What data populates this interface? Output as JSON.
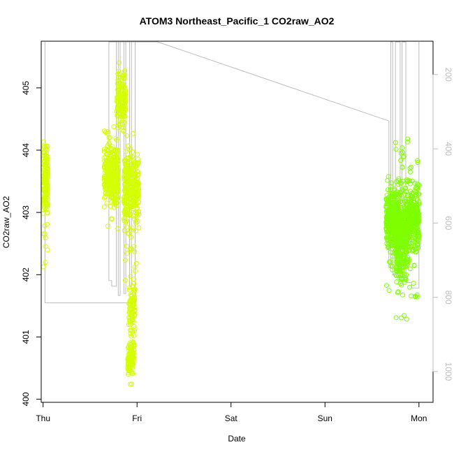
{
  "chart_data": {
    "type": "scatter",
    "title": "ATOM3 Northeast_Pacific_1 CO2raw_AO2",
    "xlabel": "Date",
    "ylabel": "CO2raw_AO2",
    "ylabel_right": "",
    "x_ticks": [
      "Thu",
      "Fri",
      "Sat",
      "Sun",
      "Mon"
    ],
    "y_ticks": [
      "400",
      "401",
      "402",
      "403",
      "404",
      "405"
    ],
    "y_right_ticks": [
      "200",
      "400",
      "600",
      "800",
      "1000"
    ],
    "xlim": [
      -0.02,
      4.15
    ],
    "ylim": [
      399.95,
      405.75
    ],
    "y_right_lim": [
      1083,
      110
    ],
    "grid": false,
    "legend": "none",
    "colors": {
      "series_a": "#d4ff00",
      "series_b": "#7fff00",
      "right_line": "#bdbdbd"
    },
    "series": [
      {
        "color": "#d4ff00",
        "segments": [
          {
            "x": [
              0.0,
              0.05
            ],
            "ymid": 403.5,
            "spread": 0.45,
            "min": 402.1,
            "max": 404.3,
            "n": 160
          },
          {
            "x": [
              0.65,
              0.8
            ],
            "ymid": 403.6,
            "spread": 0.4,
            "min": 402.7,
            "max": 404.4,
            "n": 330
          },
          {
            "x": [
              0.78,
              0.88
            ],
            "ymid": 404.8,
            "spread": 0.35,
            "min": 404.0,
            "max": 405.5,
            "n": 140
          },
          {
            "x": [
              0.86,
              1.02
            ],
            "ymid": 403.4,
            "spread": 0.45,
            "min": 401.8,
            "max": 404.3,
            "n": 320
          },
          {
            "x": [
              0.91,
              0.98
            ],
            "ymid": 401.5,
            "spread": 0.35,
            "min": 401.0,
            "max": 402.5,
            "n": 80
          },
          {
            "x": [
              0.9,
              0.97
            ],
            "ymid": 400.7,
            "spread": 0.25,
            "min": 400.1,
            "max": 401.4,
            "n": 100
          }
        ]
      },
      {
        "color": "#7fff00",
        "segments": [
          {
            "x": [
              3.65,
              3.78
            ],
            "ymid": 402.9,
            "spread": 0.4,
            "min": 401.6,
            "max": 403.6,
            "n": 330
          },
          {
            "x": [
              3.75,
              3.88
            ],
            "ymid": 402.6,
            "spread": 0.55,
            "min": 401.2,
            "max": 404.3,
            "n": 380
          },
          {
            "x": [
              3.85,
              4.0
            ],
            "ymid": 402.9,
            "spread": 0.45,
            "min": 401.6,
            "max": 404.2,
            "n": 330
          }
        ]
      }
    ],
    "right_axis_line": {
      "points": [
        [
          0.02,
          110
        ],
        [
          0.02,
          815
        ],
        [
          0.98,
          815
        ],
        [
          0.98,
          110
        ],
        [
          0.7,
          110
        ],
        [
          0.7,
          755
        ],
        [
          0.73,
          755
        ],
        [
          0.73,
          770
        ],
        [
          0.78,
          770
        ],
        [
          0.78,
          110
        ],
        [
          0.8,
          110
        ],
        [
          0.8,
          795
        ],
        [
          0.82,
          795
        ],
        [
          0.82,
          110
        ],
        [
          0.86,
          110
        ],
        [
          0.86,
          790
        ],
        [
          0.88,
          790
        ],
        [
          0.88,
          110
        ],
        [
          0.92,
          110
        ],
        [
          0.92,
          770
        ],
        [
          0.94,
          770
        ],
        [
          0.94,
          110
        ],
        [
          1.22,
          110
        ],
        [
          3.68,
          325
        ],
        [
          3.68,
          720
        ],
        [
          3.7,
          720
        ],
        [
          3.7,
          110
        ],
        [
          3.72,
          110
        ],
        [
          3.72,
          740
        ],
        [
          3.75,
          740
        ],
        [
          3.75,
          110
        ],
        [
          3.8,
          110
        ],
        [
          3.8,
          745
        ],
        [
          3.82,
          745
        ],
        [
          3.82,
          110
        ],
        [
          3.86,
          110
        ],
        [
          3.86,
          760
        ],
        [
          3.92,
          760
        ],
        [
          3.92,
          775
        ],
        [
          4.0,
          775
        ],
        [
          4.0,
          110
        ]
      ]
    }
  }
}
